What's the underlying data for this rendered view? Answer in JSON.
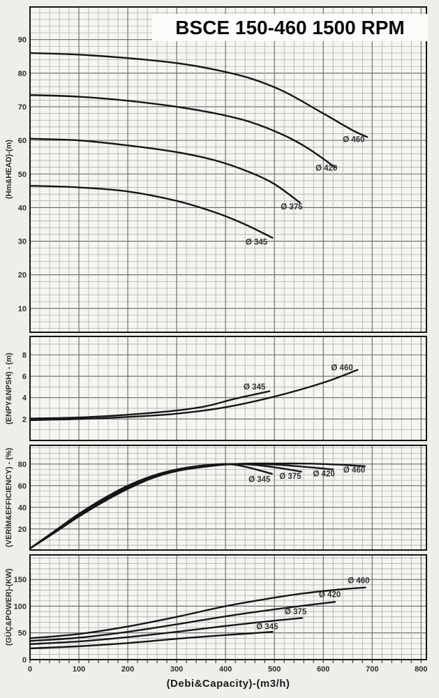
{
  "title": "BSCE 150-460 1500 RPM",
  "x_axis": {
    "label": "(Debi&Capacity)-(m3/h)",
    "ticks": [
      0,
      100,
      200,
      300,
      400,
      500,
      600,
      700,
      800
    ],
    "xlim": [
      0,
      811
    ],
    "minor_step": 20,
    "major_step": 100
  },
  "colors": {
    "page_bg": "#efeeeb",
    "panel_bg": "#f6f5f2",
    "grid_minor": "#a3a3a3",
    "grid_major": "#636363",
    "border": "#161616",
    "curve": "#161616",
    "tick_text": "#2e2e2e",
    "curve_label_text": "#333333",
    "title_text": "#0b0b0b"
  },
  "chart_data": [
    {
      "type": "line",
      "id": "head",
      "ylabel": "(Hm&HEAD)-(m)",
      "xlabel": "(Debi&Capacity)-(m3/h)",
      "yticks": [
        10,
        20,
        30,
        40,
        50,
        60,
        70,
        80,
        90
      ],
      "ylim": [
        2.9,
        99.7
      ],
      "minor_step": 2,
      "major_step": 10,
      "grid": "on",
      "series": [
        {
          "name": "impeller-460",
          "label": "Ø 460",
          "label_pos": [
            640,
            59.5
          ],
          "points": [
            [
              0,
              86
            ],
            [
              100,
              85.5
            ],
            [
              200,
              84.5
            ],
            [
              300,
              83
            ],
            [
              380,
              81
            ],
            [
              450,
              78.5
            ],
            [
              520,
              74.5
            ],
            [
              600,
              68
            ],
            [
              660,
              63
            ],
            [
              690,
              61
            ]
          ]
        },
        {
          "name": "impeller-420",
          "label": "Ø 420",
          "label_pos": [
            584,
            51
          ],
          "points": [
            [
              0,
              73.5
            ],
            [
              100,
              73
            ],
            [
              200,
              71.8
            ],
            [
              300,
              70
            ],
            [
              380,
              68
            ],
            [
              450,
              65.5
            ],
            [
              520,
              61.5
            ],
            [
              570,
              57.5
            ],
            [
              624,
              52
            ]
          ]
        },
        {
          "name": "impeller-375",
          "label": "Ø 375",
          "label_pos": [
            513,
            39.5
          ],
          "points": [
            [
              0,
              60.5
            ],
            [
              100,
              60
            ],
            [
              200,
              58.5
            ],
            [
              300,
              56.5
            ],
            [
              380,
              54
            ],
            [
              450,
              50.5
            ],
            [
              500,
              47
            ],
            [
              552,
              41.5
            ]
          ]
        },
        {
          "name": "impeller-345",
          "label": "Ø 345",
          "label_pos": [
            441,
            29
          ],
          "points": [
            [
              0,
              46.5
            ],
            [
              100,
              46
            ],
            [
              200,
              44.8
            ],
            [
              300,
              42
            ],
            [
              380,
              38.5
            ],
            [
              440,
              35
            ],
            [
              496,
              31
            ]
          ]
        }
      ]
    },
    {
      "type": "line",
      "id": "npsh",
      "ylabel": "(ENPY&NPSH) - (m)",
      "xlabel": "(Debi&Capacity)-(m3/h)",
      "yticks": [
        2,
        4,
        6,
        8
      ],
      "ylim": [
        0,
        9.72
      ],
      "minor_step": 1,
      "major_step": 2,
      "grid": "on",
      "series": [
        {
          "name": "impeller-345",
          "label": "Ø 345",
          "label_pos": [
            437,
            4.75
          ],
          "points": [
            [
              0,
              2.05
            ],
            [
              100,
              2.15
            ],
            [
              200,
              2.4
            ],
            [
              300,
              2.8
            ],
            [
              360,
              3.2
            ],
            [
              420,
              3.9
            ],
            [
              490,
              4.6
            ]
          ]
        },
        {
          "name": "impeller-460",
          "label": "Ø 460",
          "label_pos": [
            616,
            6.55
          ],
          "points": [
            [
              0,
              1.9
            ],
            [
              100,
              2.0
            ],
            [
              200,
              2.2
            ],
            [
              300,
              2.5
            ],
            [
              400,
              3.1
            ],
            [
              500,
              4.1
            ],
            [
              600,
              5.4
            ],
            [
              670,
              6.6
            ]
          ]
        }
      ]
    },
    {
      "type": "line",
      "id": "efficiency",
      "ylabel": "(VERİM&EFFICIENCY) - (%)",
      "xlabel": "(Debi&Capacity)-(m3/h)",
      "yticks": [
        20,
        40,
        60,
        80
      ],
      "ylim": [
        0.55,
        97.3
      ],
      "minor_step": 5,
      "major_step": 20,
      "grid": "on",
      "series": [
        {
          "name": "impeller-460",
          "label": "Ø 460",
          "label_pos": [
            641,
            72
          ],
          "points": [
            [
              0,
              2
            ],
            [
              50,
              16.5
            ],
            [
              100,
              31.5
            ],
            [
              150,
              45
            ],
            [
              200,
              57
            ],
            [
              250,
              67
            ],
            [
              300,
              73.5
            ],
            [
              350,
              77
            ],
            [
              400,
              79.5
            ],
            [
              450,
              80.5
            ],
            [
              500,
              80.5
            ],
            [
              550,
              80.5
            ],
            [
              600,
              80
            ],
            [
              650,
              79
            ],
            [
              685,
              78
            ]
          ]
        },
        {
          "name": "impeller-420",
          "label": "Ø 420",
          "label_pos": [
            579,
            68.5
          ],
          "points": [
            [
              0,
              2
            ],
            [
              50,
              17
            ],
            [
              100,
              32
            ],
            [
              150,
              46
            ],
            [
              200,
              58
            ],
            [
              250,
              67.5
            ],
            [
              300,
              74
            ],
            [
              350,
              77.5
            ],
            [
              400,
              79.5
            ],
            [
              450,
              80
            ],
            [
              500,
              79.5
            ],
            [
              560,
              77.5
            ],
            [
              620,
              75
            ]
          ]
        },
        {
          "name": "impeller-375",
          "label": "Ø 375",
          "label_pos": [
            510,
            66.5
          ],
          "points": [
            [
              0,
              2
            ],
            [
              50,
              17.5
            ],
            [
              100,
              33
            ],
            [
              150,
              47
            ],
            [
              200,
              59
            ],
            [
              250,
              68
            ],
            [
              300,
              74.5
            ],
            [
              350,
              78
            ],
            [
              400,
              80
            ],
            [
              450,
              79.5
            ],
            [
              500,
              77
            ],
            [
              555,
              73
            ]
          ]
        },
        {
          "name": "impeller-345",
          "label": "Ø 345",
          "label_pos": [
            447,
            63.5
          ],
          "points": [
            [
              0,
              2
            ],
            [
              50,
              18
            ],
            [
              100,
              34
            ],
            [
              150,
              48
            ],
            [
              200,
              60
            ],
            [
              250,
              69
            ],
            [
              300,
              75
            ],
            [
              350,
              78.5
            ],
            [
              400,
              80
            ],
            [
              440,
              77.5
            ],
            [
              495,
              71
            ]
          ]
        }
      ]
    },
    {
      "type": "line",
      "id": "power",
      "ylabel": "(GÜÇ&POWER)-(KW)",
      "xlabel": "(Debi&Capacity)-(m3/h)",
      "yticks": [
        0,
        50,
        100,
        150
      ],
      "ylim": [
        0,
        196
      ],
      "minor_step": 10,
      "major_step": 50,
      "grid": "on",
      "series": [
        {
          "name": "impeller-460",
          "label": "Ø 460",
          "label_pos": [
            650,
            143
          ],
          "points": [
            [
              0,
              40
            ],
            [
              100,
              48
            ],
            [
              200,
              62
            ],
            [
              300,
              80
            ],
            [
              400,
              100
            ],
            [
              480,
              113
            ],
            [
              560,
              124
            ],
            [
              630,
              131
            ],
            [
              686,
              135
            ]
          ]
        },
        {
          "name": "impeller-420",
          "label": "Ø 420",
          "label_pos": [
            591,
            117
          ],
          "points": [
            [
              0,
              35
            ],
            [
              100,
              41
            ],
            [
              200,
              52
            ],
            [
              300,
              66
            ],
            [
              400,
              81
            ],
            [
              500,
              94
            ],
            [
              560,
              101
            ],
            [
              624,
              108
            ]
          ]
        },
        {
          "name": "impeller-375",
          "label": "Ø 375",
          "label_pos": [
            521,
            85
          ],
          "points": [
            [
              0,
              29
            ],
            [
              100,
              34
            ],
            [
              200,
              42
            ],
            [
              300,
              52
            ],
            [
              400,
              63
            ],
            [
              480,
              71
            ],
            [
              557,
              78
            ]
          ]
        },
        {
          "name": "impeller-345",
          "label": "Ø 345",
          "label_pos": [
            463,
            57
          ],
          "points": [
            [
              0,
              21
            ],
            [
              100,
              25
            ],
            [
              200,
              31
            ],
            [
              300,
              39
            ],
            [
              400,
              46
            ],
            [
              450,
              49
            ],
            [
              496,
              52
            ]
          ]
        }
      ]
    }
  ]
}
